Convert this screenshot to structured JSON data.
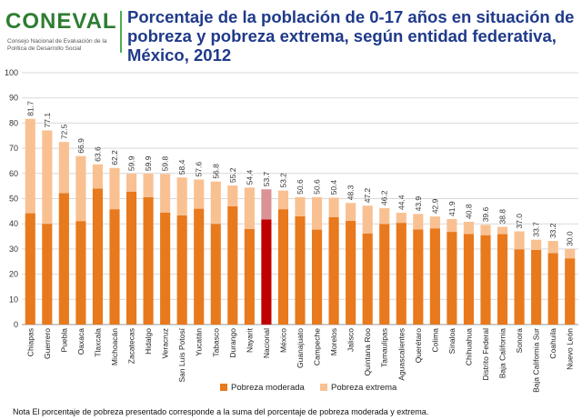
{
  "header": {
    "logo_text": "CONEVAL",
    "logo_subtitle": "Consejo Nacional de Evaluación de la Política de Desarrollo Social",
    "title": "Porcentaje de la población de 0-17 años en situación de pobreza y pobreza extrema, según entidad federativa, México, 2012"
  },
  "colors": {
    "moderada": "#E8791D",
    "extrema": "#F9C192",
    "nacional_moderada": "#C00000",
    "nacional_extrema": "#D99396",
    "title": "#1F3A8A",
    "logo": "#2E7D32"
  },
  "chart_data": {
    "type": "bar",
    "stacked": true,
    "ylim": [
      0,
      100
    ],
    "yticks": [
      0,
      10,
      20,
      30,
      40,
      50,
      60,
      70,
      80,
      90,
      100
    ],
    "grid": true,
    "legend_position": "bottom",
    "highlight_category": "Nacional",
    "categories": [
      "Chiapas",
      "Guerrero",
      "Puebla",
      "Oaxaca",
      "Tlaxcala",
      "Michoacán",
      "Zacatecas",
      "Hidalgo",
      "Veracruz",
      "San Luis Potosí",
      "Yucatán",
      "Tabasco",
      "Durango",
      "Nayarit",
      "Nacional",
      "México",
      "Guanajuato",
      "Campeche",
      "Morelos",
      "Jalisco",
      "Quintana Roo",
      "Tamaulipas",
      "Aguascalientes",
      "Querétaro",
      "Colima",
      "Sinaloa",
      "Chihuahua",
      "Distrito Federal",
      "Baja California",
      "Sonora",
      "Baja California Sur",
      "Coahuila",
      "Nuevo León"
    ],
    "series": [
      {
        "name": "Pobreza moderada",
        "values": [
          44.2,
          40.0,
          52.2,
          41.1,
          54.0,
          45.8,
          52.8,
          50.6,
          44.5,
          43.4,
          46.0,
          40.0,
          47.0,
          38.0,
          41.7,
          45.8,
          43.0,
          37.7,
          42.7,
          41.2,
          36.2,
          39.9,
          40.4,
          37.8,
          38.2,
          36.8,
          36.0,
          35.5,
          35.9,
          29.9,
          29.6,
          28.4,
          26.3
        ]
      },
      {
        "name": "Pobreza extrema",
        "values": [
          37.5,
          37.1,
          20.3,
          25.8,
          9.6,
          16.4,
          7.1,
          9.3,
          15.3,
          15.0,
          11.6,
          16.8,
          8.2,
          16.4,
          12.0,
          7.4,
          7.6,
          12.9,
          7.7,
          7.1,
          11.0,
          6.3,
          4.0,
          6.1,
          4.7,
          5.1,
          4.8,
          4.1,
          2.9,
          7.1,
          4.1,
          4.8,
          3.7
        ]
      }
    ],
    "totals": [
      "81.7",
      "77.1",
      "72.5",
      "66.9",
      "63.6",
      "62.2",
      "59.9",
      "59.9",
      "59.8",
      "58.4",
      "57.6",
      "56.8",
      "55.2",
      "54.4",
      "53.7",
      "53.2",
      "50.6",
      "50.6",
      "50.4",
      "48.3",
      "47.2",
      "46.2",
      "44.4",
      "43.9",
      "42.9",
      "41.9",
      "40.8",
      "39.6",
      "38.8",
      "37.0",
      "33.7",
      "33.2",
      "30.0"
    ]
  },
  "note": "Nota El porcentaje de pobreza presentado corresponde a la suma del porcentaje de pobreza moderada y extrema."
}
